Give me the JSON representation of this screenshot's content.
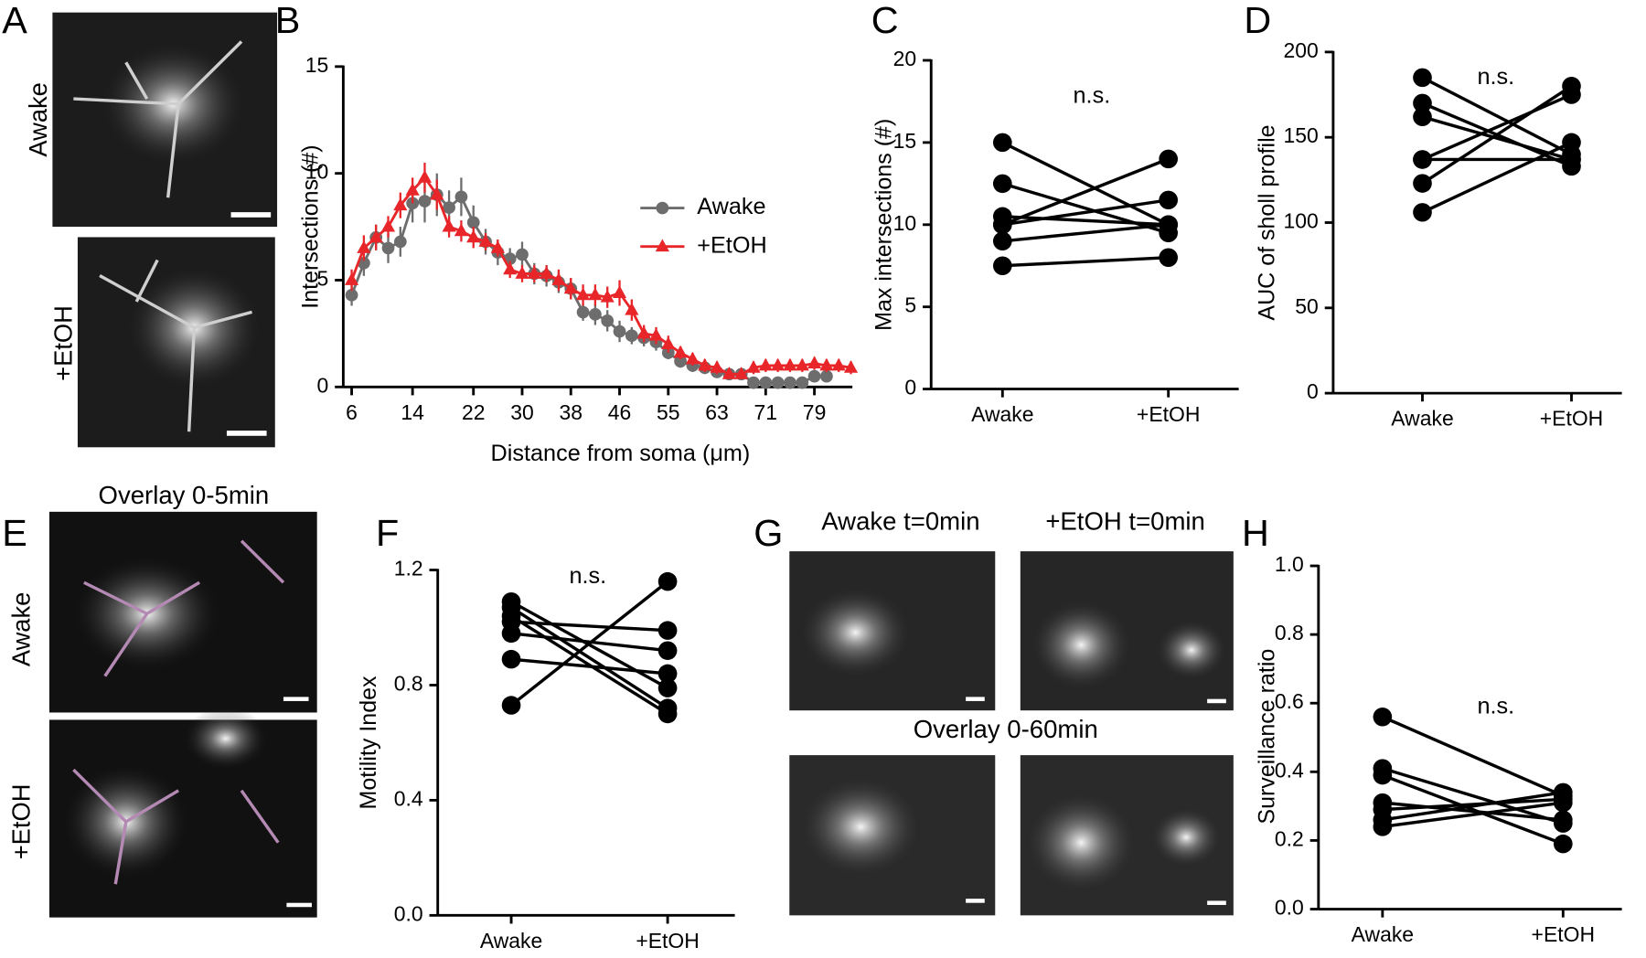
{
  "panel_labels": [
    "A",
    "B",
    "C",
    "D",
    "E",
    "F",
    "G",
    "H"
  ],
  "images": {
    "A": [
      "Awake",
      "+EtOH"
    ],
    "E": {
      "title": "Overlay 0-5min",
      "rows": [
        "Awake",
        "+EtOH"
      ]
    },
    "G": {
      "columns": [
        "Awake t=0min",
        "+EtOH t=0min"
      ],
      "overlay": "Overlay 0-60min"
    }
  },
  "chart_data": [
    {
      "type": "line",
      "ylabel": "Intersections (#)",
      "xlabel": "Distance from soma (μm)",
      "categories": [
        "6",
        null,
        null,
        null,
        null,
        "14",
        null,
        null,
        null,
        null,
        "22",
        null,
        null,
        null,
        "30",
        null,
        null,
        null,
        "38",
        null,
        null,
        null,
        "46",
        null,
        null,
        null,
        "55",
        null,
        null,
        null,
        "63",
        null,
        null,
        null,
        "71",
        null,
        null,
        null,
        "79",
        null,
        null,
        null
      ],
      "ylim": [
        0,
        15
      ],
      "yticks": [
        0,
        5,
        10,
        15
      ],
      "legend": "right",
      "series": [
        {
          "name": "Awake",
          "color": "#6d6d6d",
          "marker": "circle",
          "values": [
            4.3,
            5.8,
            7.0,
            6.5,
            6.8,
            8.6,
            8.7,
            9.0,
            8.4,
            8.9,
            7.7,
            6.8,
            6.3,
            6.0,
            6.2,
            5.3,
            5.2,
            4.9,
            4.6,
            3.5,
            3.4,
            3.1,
            2.6,
            2.4,
            2.3,
            2.1,
            1.6,
            1.2,
            1.0,
            0.9,
            0.7,
            0.6,
            0.6,
            0.2,
            0.2,
            0.2,
            0.2,
            0.2,
            0.5,
            0.5,
            null,
            null
          ],
          "errors": [
            0.5,
            0.6,
            0.6,
            0.7,
            0.7,
            0.9,
            1.0,
            1.0,
            0.8,
            0.9,
            0.8,
            0.6,
            0.6,
            0.5,
            0.6,
            0.5,
            0.5,
            0.5,
            0.5,
            0.4,
            0.5,
            0.5,
            0.5,
            0.4,
            0.4,
            0.4,
            0.3,
            0.3,
            0.3,
            0.3,
            0.2,
            0.2,
            0.2,
            0.1,
            0.1,
            0.1,
            0.1,
            0.1,
            0.2,
            0.2,
            null,
            null
          ]
        },
        {
          "name": "+EtOH",
          "color": "#e8262a",
          "marker": "triangle",
          "values": [
            5.0,
            6.5,
            7.0,
            7.5,
            8.5,
            9.2,
            9.8,
            9.0,
            7.5,
            7.3,
            7.0,
            6.8,
            6.5,
            5.5,
            5.3,
            5.3,
            5.3,
            5.0,
            4.6,
            4.3,
            4.3,
            4.2,
            4.4,
            3.6,
            2.5,
            2.4,
            2.0,
            1.6,
            1.3,
            1.0,
            0.9,
            0.6,
            0.6,
            0.9,
            1.0,
            1.0,
            1.0,
            1.0,
            1.1,
            1.0,
            1.0,
            0.9
          ],
          "errors": [
            0.5,
            0.6,
            0.6,
            0.5,
            0.6,
            0.6,
            0.7,
            0.7,
            0.5,
            0.5,
            0.5,
            0.4,
            0.4,
            0.4,
            0.4,
            0.4,
            0.4,
            0.5,
            0.5,
            0.5,
            0.5,
            0.5,
            0.6,
            0.5,
            0.4,
            0.4,
            0.4,
            0.3,
            0.3,
            0.3,
            0.3,
            0.2,
            0.2,
            0.3,
            0.3,
            0.3,
            0.3,
            0.3,
            0.3,
            0.3,
            0.3,
            0.3
          ]
        }
      ]
    },
    {
      "type": "paired",
      "ylabel": "Max intersections (#)",
      "annotation": "n.s.",
      "color": "#000000",
      "categories": [
        "Awake",
        "+EtOH"
      ],
      "ylim": [
        0,
        20
      ],
      "yticks": [
        0,
        5,
        10,
        15,
        20
      ],
      "series": [
        {
          "values": [
            15,
            10
          ]
        },
        {
          "values": [
            12.5,
            9.5
          ]
        },
        {
          "values": [
            10.5,
            10
          ]
        },
        {
          "values": [
            10,
            14
          ]
        },
        {
          "values": [
            10,
            11.5
          ]
        },
        {
          "values": [
            9,
            10
          ]
        },
        {
          "values": [
            7.5,
            8
          ]
        }
      ]
    },
    {
      "type": "paired",
      "ylabel": "AUC of sholl profile",
      "annotation": "n.s.",
      "color": "#000000",
      "categories": [
        "Awake",
        "+EtOH"
      ],
      "ylim": [
        0,
        200
      ],
      "yticks": [
        0,
        50,
        100,
        150,
        200
      ],
      "series": [
        {
          "values": [
            185,
            140
          ]
        },
        {
          "values": [
            170,
            133
          ]
        },
        {
          "values": [
            162,
            137
          ]
        },
        {
          "values": [
            137,
            175
          ]
        },
        {
          "values": [
            137,
            137
          ]
        },
        {
          "values": [
            123,
            180
          ]
        },
        {
          "values": [
            106,
            147
          ]
        }
      ]
    },
    {
      "type": "paired",
      "ylabel": "Motility Index",
      "annotation": "n.s.",
      "color": "#000000",
      "categories": [
        "Awake",
        "+EtOH"
      ],
      "ylim": [
        0,
        1.2
      ],
      "yticks": [
        {
          "value": 0,
          "label": "0.0"
        },
        0.4,
        0.8,
        1.2
      ],
      "series": [
        {
          "values": [
            1.09,
            0.79
          ]
        },
        {
          "values": [
            1.07,
            0.72
          ]
        },
        {
          "values": [
            1.04,
            0.7
          ]
        },
        {
          "values": [
            1.02,
            0.99
          ]
        },
        {
          "values": [
            0.98,
            0.92
          ]
        },
        {
          "values": [
            0.89,
            0.84
          ]
        },
        {
          "values": [
            0.73,
            1.16
          ]
        }
      ]
    },
    {
      "type": "paired",
      "ylabel": "Surveillance ratio",
      "annotation": "n.s.",
      "color": "#000000",
      "categories": [
        "Awake",
        "+EtOH"
      ],
      "ylim": [
        0,
        1.0
      ],
      "yticks": [
        {
          "value": 0,
          "label": "0.0"
        },
        0.2,
        0.4,
        0.6,
        0.8,
        {
          "value": 1.0,
          "label": "1.0"
        }
      ],
      "series": [
        {
          "values": [
            0.56,
            0.33
          ]
        },
        {
          "values": [
            0.41,
            0.25
          ]
        },
        {
          "values": [
            0.39,
            0.19
          ]
        },
        {
          "values": [
            0.31,
            0.26
          ]
        },
        {
          "values": [
            0.29,
            0.32
          ]
        },
        {
          "values": [
            0.26,
            0.34
          ]
        },
        {
          "values": [
            0.24,
            0.31
          ]
        }
      ]
    }
  ]
}
